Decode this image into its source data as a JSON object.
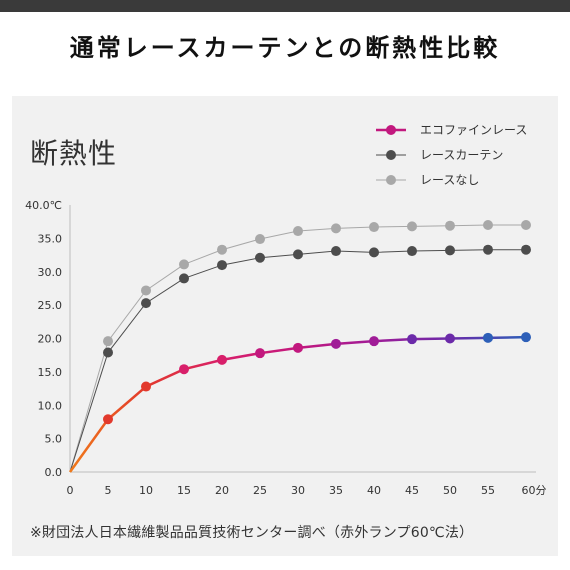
{
  "header": {
    "title": "通常レースカーテンとの断熱性比較"
  },
  "chart_data": {
    "type": "line",
    "title": "断熱性",
    "x": [
      0,
      5,
      10,
      15,
      20,
      25,
      30,
      35,
      40,
      45,
      50,
      55,
      60
    ],
    "x_tick_labels": [
      "0",
      "5",
      "10",
      "15",
      "20",
      "25",
      "30",
      "35",
      "40",
      "45",
      "50",
      "55",
      "60分"
    ],
    "y_tick_labels": [
      "0.0",
      "5.0",
      "10.0",
      "15.0",
      "20.0",
      "25.0",
      "30.0",
      "35.0",
      "40.0℃"
    ],
    "ylim": [
      0,
      40
    ],
    "xlim": [
      0,
      60
    ],
    "grid": false,
    "legend_position": "top-right",
    "series": [
      {
        "name": "エコファインレース",
        "values": [
          0,
          7.9,
          12.8,
          15.4,
          16.8,
          17.8,
          18.6,
          19.2,
          19.6,
          19.9,
          20.0,
          20.1,
          20.2
        ],
        "color": "#c2187e"
      },
      {
        "name": "レースカーテン",
        "values": [
          0,
          17.9,
          25.3,
          29.0,
          31.0,
          32.1,
          32.6,
          33.1,
          32.9,
          33.1,
          33.2,
          33.3,
          33.3
        ],
        "color": "#4d4d4d"
      },
      {
        "name": "レースなし",
        "values": [
          0,
          19.6,
          27.2,
          31.1,
          33.3,
          34.9,
          36.1,
          36.5,
          36.7,
          36.8,
          36.9,
          37.0,
          37.0
        ],
        "color": "#a8a8a8"
      }
    ],
    "eco_gradient": [
      "#f07a1a",
      "#e2392c",
      "#d81f6a",
      "#c2187e",
      "#a01c97",
      "#6b2aa9",
      "#2d5fb8"
    ]
  },
  "footnote": "※財団法人日本繊維製品品質技術センター調べ（赤外ランプ60℃法）"
}
